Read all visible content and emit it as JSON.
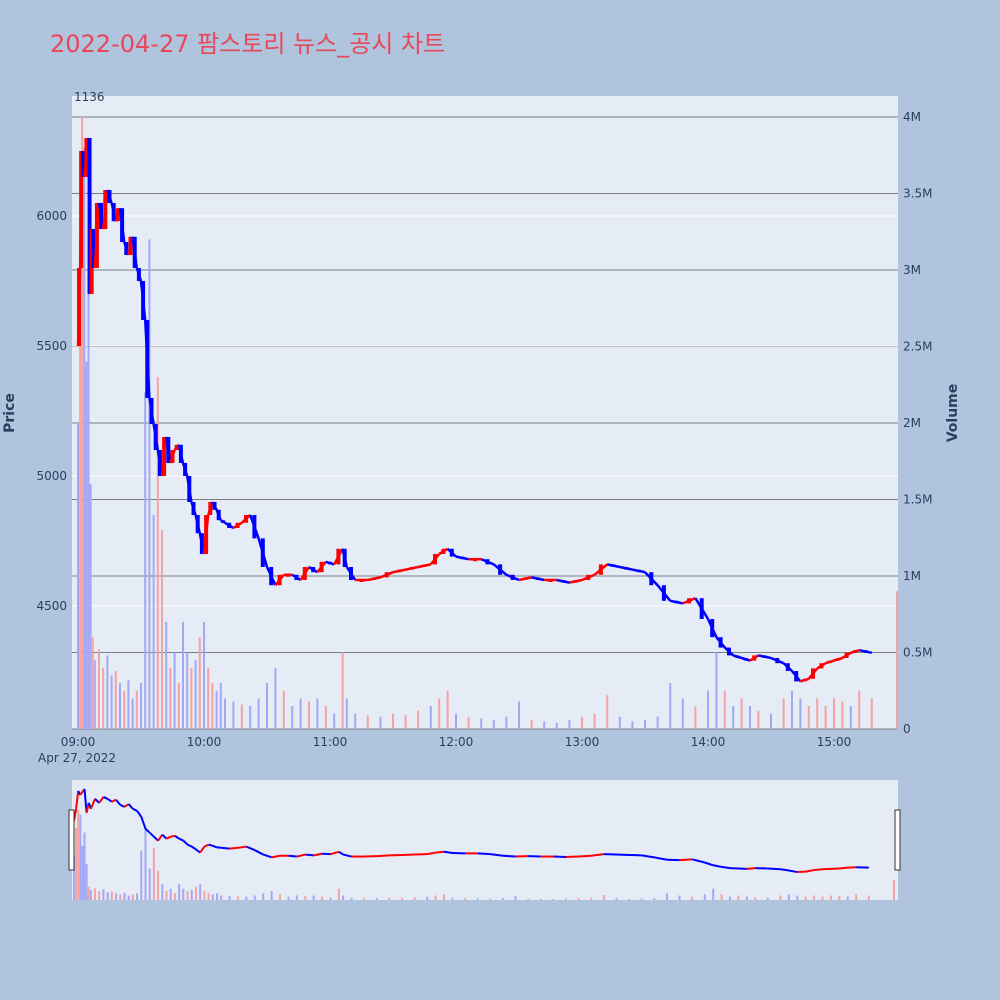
{
  "title": "2022-04-27 팜스토리 뉴스_공시 차트",
  "colors": {
    "background": "#b0c4de",
    "plot_bg": "#e5ecf6",
    "up": "#ff0000",
    "down": "#0000ff",
    "vol_up": "#f4a3a3",
    "vol_down": "#a3a8f4",
    "title": "#e8475a",
    "vol_grid": "#7a7f8a"
  },
  "chart_data": {
    "type": "candlestick",
    "title": "2022-04-27 팜스토리 뉴스_공시 차트",
    "ylabel": "Price",
    "y2label": "Volume",
    "ylim": [
      4010,
      6400
    ],
    "y2lim": [
      0,
      4000000
    ],
    "x_range": [
      "09:00",
      "15:30"
    ],
    "x_ticks": [
      "09:00",
      "10:00",
      "11:00",
      "12:00",
      "13:00",
      "14:00",
      "15:00"
    ],
    "x_date_label": "Apr 27, 2022",
    "y_ticks": [
      4500,
      5000,
      5500,
      6000
    ],
    "y2_ticks": [
      0,
      500000,
      1000000,
      1500000,
      2000000,
      2500000,
      3000000,
      3500000,
      4000000
    ],
    "y2_tick_labels": [
      "0",
      "0.5M",
      "1M",
      "1.5M",
      "2M",
      "2.5M",
      "3M",
      "3.5M",
      "4M"
    ],
    "top_annotation": "1136",
    "price_path": [
      [
        "09:00",
        5500
      ],
      [
        "09:01",
        5800
      ],
      [
        "09:02",
        6250
      ],
      [
        "09:03",
        6150
      ],
      [
        "09:05",
        6300
      ],
      [
        "09:06",
        5700
      ],
      [
        "09:07",
        5950
      ],
      [
        "09:08",
        5800
      ],
      [
        "09:10",
        6050
      ],
      [
        "09:12",
        5950
      ],
      [
        "09:14",
        6100
      ],
      [
        "09:16",
        6050
      ],
      [
        "09:18",
        5980
      ],
      [
        "09:20",
        6030
      ],
      [
        "09:22",
        5900
      ],
      [
        "09:24",
        5850
      ],
      [
        "09:26",
        5920
      ],
      [
        "09:28",
        5800
      ],
      [
        "09:30",
        5750
      ],
      [
        "09:32",
        5600
      ],
      [
        "09:34",
        5300
      ],
      [
        "09:36",
        5200
      ],
      [
        "09:38",
        5100
      ],
      [
        "09:40",
        5000
      ],
      [
        "09:42",
        5150
      ],
      [
        "09:44",
        5050
      ],
      [
        "09:46",
        5100
      ],
      [
        "09:48",
        5120
      ],
      [
        "09:50",
        5050
      ],
      [
        "09:52",
        5000
      ],
      [
        "09:54",
        4900
      ],
      [
        "09:56",
        4850
      ],
      [
        "09:58",
        4780
      ],
      [
        "10:00",
        4700
      ],
      [
        "10:02",
        4850
      ],
      [
        "10:04",
        4900
      ],
      [
        "10:06",
        4870
      ],
      [
        "10:08",
        4830
      ],
      [
        "10:10",
        4820
      ],
      [
        "10:14",
        4800
      ],
      [
        "10:18",
        4820
      ],
      [
        "10:22",
        4850
      ],
      [
        "10:26",
        4760
      ],
      [
        "10:30",
        4650
      ],
      [
        "10:34",
        4580
      ],
      [
        "10:38",
        4620
      ],
      [
        "10:42",
        4620
      ],
      [
        "10:46",
        4600
      ],
      [
        "10:50",
        4650
      ],
      [
        "10:54",
        4630
      ],
      [
        "10:58",
        4670
      ],
      [
        "11:02",
        4660
      ],
      [
        "11:06",
        4720
      ],
      [
        "11:08",
        4650
      ],
      [
        "11:12",
        4600
      ],
      [
        "11:18",
        4600
      ],
      [
        "11:24",
        4610
      ],
      [
        "11:30",
        4630
      ],
      [
        "11:36",
        4640
      ],
      [
        "11:42",
        4650
      ],
      [
        "11:48",
        4660
      ],
      [
        "11:52",
        4700
      ],
      [
        "11:56",
        4720
      ],
      [
        "12:00",
        4690
      ],
      [
        "12:06",
        4680
      ],
      [
        "12:12",
        4680
      ],
      [
        "12:18",
        4660
      ],
      [
        "12:24",
        4620
      ],
      [
        "12:30",
        4600
      ],
      [
        "12:36",
        4610
      ],
      [
        "12:42",
        4600
      ],
      [
        "12:48",
        4600
      ],
      [
        "12:54",
        4590
      ],
      [
        "13:00",
        4600
      ],
      [
        "13:06",
        4620
      ],
      [
        "13:12",
        4660
      ],
      [
        "13:18",
        4650
      ],
      [
        "13:24",
        4640
      ],
      [
        "13:30",
        4630
      ],
      [
        "13:36",
        4580
      ],
      [
        "13:42",
        4520
      ],
      [
        "13:48",
        4510
      ],
      [
        "13:54",
        4530
      ],
      [
        "14:00",
        4450
      ],
      [
        "14:04",
        4380
      ],
      [
        "14:08",
        4340
      ],
      [
        "14:12",
        4310
      ],
      [
        "14:16",
        4300
      ],
      [
        "14:20",
        4290
      ],
      [
        "14:24",
        4310
      ],
      [
        "14:30",
        4300
      ],
      [
        "14:36",
        4280
      ],
      [
        "14:40",
        4250
      ],
      [
        "14:44",
        4210
      ],
      [
        "14:48",
        4220
      ],
      [
        "14:52",
        4260
      ],
      [
        "14:56",
        4280
      ],
      [
        "15:00",
        4290
      ],
      [
        "15:04",
        4300
      ],
      [
        "15:08",
        4320
      ],
      [
        "15:12",
        4330
      ],
      [
        "15:18",
        4320
      ]
    ],
    "volume_bars": [
      [
        "09:00",
        2000000,
        "down"
      ],
      [
        "09:01",
        3200000,
        "up"
      ],
      [
        "09:02",
        4000000,
        "up"
      ],
      [
        "09:03",
        3800000,
        "down"
      ],
      [
        "09:04",
        2400000,
        "down"
      ],
      [
        "09:05",
        3000000,
        "down"
      ],
      [
        "09:06",
        1600000,
        "down"
      ],
      [
        "09:07",
        600000,
        "up"
      ],
      [
        "09:08",
        450000,
        "down"
      ],
      [
        "09:10",
        520000,
        "up"
      ],
      [
        "09:12",
        400000,
        "up"
      ],
      [
        "09:14",
        480000,
        "down"
      ],
      [
        "09:16",
        350000,
        "down"
      ],
      [
        "09:18",
        380000,
        "up"
      ],
      [
        "09:20",
        300000,
        "down"
      ],
      [
        "09:22",
        250000,
        "up"
      ],
      [
        "09:24",
        320000,
        "down"
      ],
      [
        "09:26",
        200000,
        "down"
      ],
      [
        "09:28",
        250000,
        "up"
      ],
      [
        "09:30",
        300000,
        "down"
      ],
      [
        "09:32",
        2200000,
        "down"
      ],
      [
        "09:34",
        3200000,
        "down"
      ],
      [
        "09:36",
        1400000,
        "down"
      ],
      [
        "09:38",
        2300000,
        "up"
      ],
      [
        "09:40",
        1300000,
        "up"
      ],
      [
        "09:42",
        700000,
        "down"
      ],
      [
        "09:44",
        400000,
        "up"
      ],
      [
        "09:46",
        500000,
        "down"
      ],
      [
        "09:48",
        300000,
        "up"
      ],
      [
        "09:50",
        700000,
        "down"
      ],
      [
        "09:52",
        500000,
        "down"
      ],
      [
        "09:54",
        400000,
        "up"
      ],
      [
        "09:56",
        450000,
        "down"
      ],
      [
        "09:58",
        600000,
        "up"
      ],
      [
        "10:00",
        700000,
        "down"
      ],
      [
        "10:02",
        400000,
        "up"
      ],
      [
        "10:04",
        300000,
        "up"
      ],
      [
        "10:06",
        250000,
        "down"
      ],
      [
        "10:08",
        300000,
        "down"
      ],
      [
        "10:10",
        200000,
        "down"
      ],
      [
        "10:14",
        180000,
        "down"
      ],
      [
        "10:18",
        160000,
        "up"
      ],
      [
        "10:22",
        150000,
        "down"
      ],
      [
        "10:26",
        200000,
        "down"
      ],
      [
        "10:30",
        300000,
        "down"
      ],
      [
        "10:34",
        400000,
        "down"
      ],
      [
        "10:38",
        250000,
        "up"
      ],
      [
        "10:42",
        150000,
        "down"
      ],
      [
        "10:46",
        200000,
        "down"
      ],
      [
        "10:50",
        180000,
        "up"
      ],
      [
        "10:54",
        200000,
        "down"
      ],
      [
        "10:58",
        150000,
        "up"
      ],
      [
        "11:02",
        100000,
        "down"
      ],
      [
        "11:06",
        500000,
        "up"
      ],
      [
        "11:08",
        200000,
        "down"
      ],
      [
        "11:12",
        100000,
        "down"
      ],
      [
        "11:18",
        90000,
        "up"
      ],
      [
        "11:24",
        80000,
        "down"
      ],
      [
        "11:30",
        100000,
        "up"
      ],
      [
        "11:36",
        90000,
        "up"
      ],
      [
        "11:42",
        120000,
        "up"
      ],
      [
        "11:48",
        150000,
        "down"
      ],
      [
        "11:52",
        200000,
        "up"
      ],
      [
        "11:56",
        250000,
        "up"
      ],
      [
        "12:00",
        100000,
        "down"
      ],
      [
        "12:06",
        80000,
        "up"
      ],
      [
        "12:12",
        70000,
        "down"
      ],
      [
        "12:18",
        60000,
        "down"
      ],
      [
        "12:24",
        80000,
        "down"
      ],
      [
        "12:30",
        180000,
        "down"
      ],
      [
        "12:36",
        60000,
        "up"
      ],
      [
        "12:42",
        50000,
        "down"
      ],
      [
        "12:48",
        40000,
        "down"
      ],
      [
        "12:54",
        60000,
        "down"
      ],
      [
        "13:00",
        80000,
        "up"
      ],
      [
        "13:06",
        100000,
        "up"
      ],
      [
        "13:12",
        220000,
        "up"
      ],
      [
        "13:18",
        80000,
        "down"
      ],
      [
        "13:24",
        50000,
        "down"
      ],
      [
        "13:30",
        60000,
        "down"
      ],
      [
        "13:36",
        80000,
        "down"
      ],
      [
        "13:42",
        300000,
        "down"
      ],
      [
        "13:48",
        200000,
        "down"
      ],
      [
        "13:54",
        150000,
        "up"
      ],
      [
        "14:00",
        250000,
        "down"
      ],
      [
        "14:04",
        500000,
        "down"
      ],
      [
        "14:08",
        250000,
        "up"
      ],
      [
        "14:12",
        150000,
        "down"
      ],
      [
        "14:16",
        200000,
        "up"
      ],
      [
        "14:20",
        150000,
        "down"
      ],
      [
        "14:24",
        120000,
        "up"
      ],
      [
        "14:30",
        100000,
        "down"
      ],
      [
        "14:36",
        200000,
        "up"
      ],
      [
        "14:40",
        250000,
        "down"
      ],
      [
        "14:44",
        200000,
        "down"
      ],
      [
        "14:48",
        150000,
        "up"
      ],
      [
        "14:52",
        200000,
        "up"
      ],
      [
        "14:56",
        150000,
        "up"
      ],
      [
        "15:00",
        200000,
        "up"
      ],
      [
        "15:04",
        180000,
        "up"
      ],
      [
        "15:08",
        150000,
        "down"
      ],
      [
        "15:12",
        250000,
        "up"
      ],
      [
        "15:18",
        200000,
        "up"
      ],
      [
        "15:30",
        900000,
        "up"
      ]
    ]
  }
}
